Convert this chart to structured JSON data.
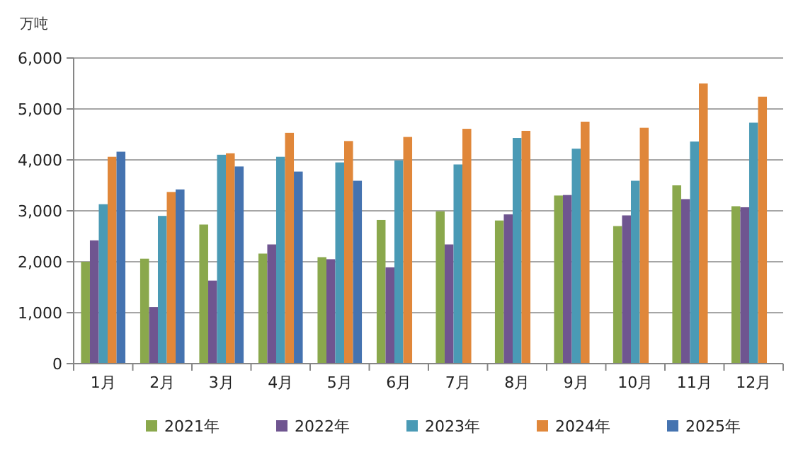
{
  "chart_data": {
    "type": "bar",
    "ylabel": "万吨",
    "categories": [
      "1月",
      "2月",
      "3月",
      "4月",
      "5月",
      "6月",
      "7月",
      "8月",
      "9月",
      "10月",
      "11月",
      "12月"
    ],
    "series": [
      {
        "name": "2021年",
        "color": "#8aa84c",
        "values": [
          2000,
          2060,
          2730,
          2160,
          2090,
          2820,
          2990,
          2810,
          3300,
          2700,
          3500,
          3090
        ]
      },
      {
        "name": "2022年",
        "color": "#6f5590",
        "values": [
          2420,
          1110,
          1630,
          2340,
          2050,
          1890,
          2340,
          2930,
          3310,
          2910,
          3230,
          3070
        ]
      },
      {
        "name": "2023年",
        "color": "#4a9ab5",
        "values": [
          3130,
          2900,
          4100,
          4060,
          3950,
          3990,
          3910,
          4430,
          4220,
          3590,
          4360,
          4730
        ]
      },
      {
        "name": "2024年",
        "color": "#e0873a",
        "values": [
          4060,
          3370,
          4130,
          4530,
          4370,
          4450,
          4610,
          4570,
          4750,
          4630,
          5500,
          5240
        ]
      },
      {
        "name": "2025年",
        "color": "#4573b0",
        "values": [
          4160,
          3420,
          3870,
          3770,
          3590,
          null,
          null,
          null,
          null,
          null,
          null,
          null
        ]
      }
    ],
    "ylim": [
      0,
      6000
    ],
    "yticks": [
      {
        "value": 0,
        "label": "0"
      },
      {
        "value": 1000,
        "label": "1,000"
      },
      {
        "value": 2000,
        "label": "2,000"
      },
      {
        "value": 3000,
        "label": "3,000"
      },
      {
        "value": 4000,
        "label": "4,000"
      },
      {
        "value": 5000,
        "label": "5,000"
      },
      {
        "value": 6000,
        "label": "6,000"
      }
    ],
    "grid": "y",
    "legend": "bottom"
  }
}
